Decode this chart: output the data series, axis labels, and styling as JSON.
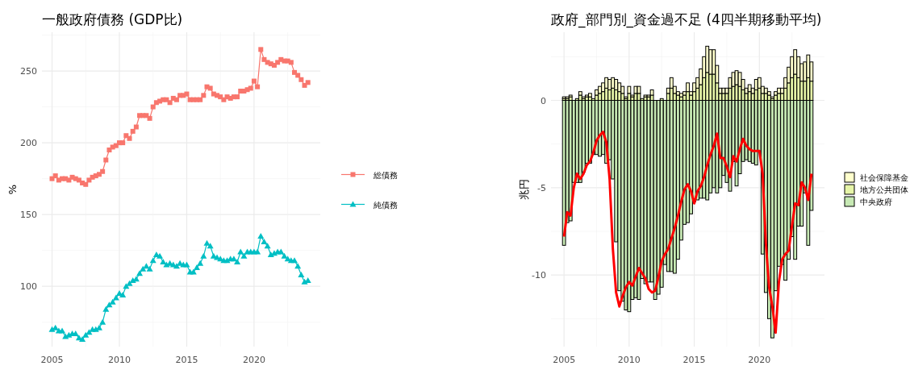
{
  "chart_data": [
    {
      "type": "line",
      "title": "一般政府債務 (GDP比)",
      "ylabel": "%",
      "x": [
        "2005-01",
        "2005-04",
        "2005-07",
        "2005-10",
        "2006-01",
        "2006-04",
        "2006-07",
        "2006-10",
        "2007-01",
        "2007-04",
        "2007-07",
        "2007-10",
        "2008-01",
        "2008-04",
        "2008-07",
        "2008-10",
        "2009-01",
        "2009-04",
        "2009-07",
        "2009-10",
        "2010-01",
        "2010-04",
        "2010-07",
        "2010-10",
        "2011-01",
        "2011-04",
        "2011-07",
        "2011-10",
        "2012-01",
        "2012-04",
        "2012-07",
        "2012-10",
        "2013-01",
        "2013-04",
        "2013-07",
        "2013-10",
        "2014-01",
        "2014-04",
        "2014-07",
        "2014-10",
        "2015-01",
        "2015-04",
        "2015-07",
        "2015-10",
        "2016-01",
        "2016-04",
        "2016-07",
        "2016-10",
        "2017-01",
        "2017-04",
        "2017-07",
        "2017-10",
        "2018-01",
        "2018-04",
        "2018-07",
        "2018-10",
        "2019-01",
        "2019-04",
        "2019-07",
        "2019-10",
        "2020-01",
        "2020-04",
        "2020-07",
        "2020-10",
        "2021-01",
        "2021-04",
        "2021-07",
        "2021-10",
        "2022-01",
        "2022-04",
        "2022-07",
        "2022-10",
        "2023-01",
        "2023-04",
        "2023-07",
        "2023-10",
        "2024-01"
      ],
      "series": [
        {
          "name": "総債務",
          "color": "#f8766d",
          "marker": "square",
          "values": [
            175,
            177,
            174,
            175,
            175,
            174,
            176,
            175,
            174,
            172,
            171,
            174,
            176,
            177,
            178,
            180,
            188,
            195,
            197,
            198,
            200,
            200,
            205,
            203,
            208,
            211,
            219,
            219,
            219,
            217,
            225,
            228,
            229,
            230,
            230,
            228,
            231,
            230,
            233,
            233,
            234,
            230,
            230,
            230,
            230,
            233,
            239,
            238,
            234,
            233,
            232,
            230,
            232,
            231,
            232,
            232,
            236,
            236,
            237,
            238,
            243,
            239,
            265,
            258,
            256,
            255,
            254,
            256,
            258,
            257,
            257,
            256,
            249,
            247,
            244,
            240,
            242
          ]
        },
        {
          "name": "純債務",
          "color": "#00bfc4",
          "marker": "triangle",
          "values": [
            70,
            71,
            69,
            69,
            65,
            66,
            67,
            67,
            64,
            63,
            66,
            68,
            70,
            70,
            71,
            75,
            84,
            87,
            89,
            92,
            95,
            94,
            100,
            102,
            104,
            105,
            109,
            112,
            114,
            112,
            118,
            122,
            121,
            117,
            115,
            116,
            115,
            114,
            116,
            115,
            115,
            110,
            110,
            113,
            116,
            121,
            130,
            128,
            121,
            120,
            119,
            118,
            118,
            119,
            119,
            117,
            124,
            121,
            124,
            124,
            124,
            124,
            135,
            131,
            128,
            122,
            123,
            124,
            124,
            121,
            119,
            118,
            118,
            114,
            108,
            103,
            104
          ]
        }
      ],
      "xlim": [
        "2004-04",
        "2024-12"
      ],
      "xticks": [
        "2005",
        "2010",
        "2015",
        "2020"
      ],
      "ylim": [
        58,
        277
      ],
      "yticks": [
        100,
        150,
        200,
        250
      ],
      "grid": true,
      "legend": "right"
    },
    {
      "type": "bar",
      "title": "政府_部門別_資金過不足 (4四半期移動平均)",
      "ylabel": "兆円",
      "stacked": true,
      "x": [
        "2005-01",
        "2005-04",
        "2005-07",
        "2005-10",
        "2006-01",
        "2006-04",
        "2006-07",
        "2006-10",
        "2007-01",
        "2007-04",
        "2007-07",
        "2007-10",
        "2008-01",
        "2008-04",
        "2008-07",
        "2008-10",
        "2009-01",
        "2009-04",
        "2009-07",
        "2009-10",
        "2010-01",
        "2010-04",
        "2010-07",
        "2010-10",
        "2011-01",
        "2011-04",
        "2011-07",
        "2011-10",
        "2012-01",
        "2012-04",
        "2012-07",
        "2012-10",
        "2013-01",
        "2013-04",
        "2013-07",
        "2013-10",
        "2014-01",
        "2014-04",
        "2014-07",
        "2014-10",
        "2015-01",
        "2015-04",
        "2015-07",
        "2015-10",
        "2016-01",
        "2016-04",
        "2016-07",
        "2016-10",
        "2017-01",
        "2017-04",
        "2017-07",
        "2017-10",
        "2018-01",
        "2018-04",
        "2018-07",
        "2018-10",
        "2019-01",
        "2019-04",
        "2019-07",
        "2019-10",
        "2020-01",
        "2020-04",
        "2020-07",
        "2020-10",
        "2021-01",
        "2021-04",
        "2021-07",
        "2021-10",
        "2022-01",
        "2022-04",
        "2022-07",
        "2022-10",
        "2023-01",
        "2023-04",
        "2023-07",
        "2023-10",
        "2024-01"
      ],
      "series": [
        {
          "name": "中央政府",
          "color": "#c7e9b4",
          "values": [
            -8.3,
            -7.0,
            -6.9,
            -4.7,
            -4.7,
            -4.7,
            -4.1,
            -3.6,
            -3.6,
            -3.1,
            -3.1,
            -3.2,
            -3.1,
            -3.6,
            -3.4,
            -4.5,
            -8.1,
            -10.9,
            -11.5,
            -12.0,
            -12.1,
            -11.4,
            -11.3,
            -11.4,
            -10.2,
            -10.5,
            -10.4,
            -10.4,
            -11.4,
            -11.1,
            -10.7,
            -9.4,
            -9.8,
            -9.8,
            -9.9,
            -9.1,
            -8.0,
            -7.1,
            -7.0,
            -6.5,
            -5.8,
            -5.7,
            -5.6,
            -5.6,
            -5.7,
            -5.3,
            -5.0,
            -5.3,
            -5.0,
            -4.3,
            -4.7,
            -5.2,
            -3.5,
            -4.9,
            -4.2,
            -3.5,
            -3.4,
            -3.5,
            -3.6,
            -3.7,
            -2.9,
            -8.8,
            -11.0,
            -12.5,
            -13.6,
            -10.9,
            -9.5,
            -9.4,
            -10.3,
            -9.1,
            -7.8,
            -9.1,
            -7.2,
            -7.2,
            -5.3,
            -8.3,
            -6.3
          ]
        },
        {
          "name": "地方公共団体",
          "color": "#e6f5a8",
          "values": [
            0.1,
            0.1,
            0.2,
            0.0,
            0.1,
            0.3,
            0.1,
            0.2,
            0.2,
            0.1,
            0.3,
            0.4,
            0.5,
            0.7,
            0.6,
            0.7,
            0.6,
            0.5,
            0.4,
            0.1,
            0.4,
            0.2,
            0.4,
            0.4,
            0.1,
            0.2,
            0.2,
            0.3,
            0.0,
            0.0,
            0.1,
            0.0,
            0.4,
            0.7,
            0.4,
            0.3,
            0.2,
            0.3,
            0.5,
            0.3,
            0.5,
            0.7,
            0.9,
            1.3,
            1.6,
            1.5,
            1.5,
            1.0,
            0.4,
            0.4,
            0.4,
            0.7,
            0.8,
            0.9,
            0.8,
            0.6,
            0.4,
            0.5,
            0.4,
            0.6,
            0.7,
            0.4,
            0.4,
            0.3,
            0.1,
            0.3,
            0.4,
            0.4,
            0.7,
            1.0,
            1.3,
            1.5,
            1.3,
            1.1,
            1.1,
            1.3,
            1.1
          ]
        },
        {
          "name": "社会保障基金",
          "color": "#ffffcc",
          "values": [
            0.1,
            0.1,
            0.1,
            0.0,
            0.0,
            0.2,
            0.1,
            0.1,
            0.2,
            0.0,
            0.3,
            0.4,
            0.5,
            0.6,
            0.6,
            0.6,
            0.6,
            0.5,
            0.4,
            0.1,
            0.4,
            0.1,
            0.4,
            0.4,
            0.0,
            0.1,
            0.1,
            0.3,
            0.0,
            0.0,
            0.0,
            0.0,
            0.3,
            0.6,
            0.4,
            0.2,
            0.2,
            0.2,
            0.5,
            0.2,
            0.5,
            0.6,
            0.9,
            1.2,
            1.5,
            1.4,
            1.4,
            1.0,
            0.3,
            0.3,
            0.3,
            0.6,
            0.8,
            0.8,
            0.8,
            0.6,
            0.3,
            0.4,
            0.3,
            0.6,
            0.6,
            0.4,
            0.3,
            0.2,
            0.1,
            0.2,
            0.3,
            0.3,
            0.6,
            0.9,
            1.2,
            1.4,
            1.2,
            1.0,
            1.1,
            1.3,
            1.1
          ]
        },
        {
          "type": "line",
          "color": "#ff0000",
          "values": [
            -7.8,
            -6.4,
            -6.6,
            -5.0,
            -4.2,
            -4.5,
            -4.2,
            -3.7,
            -3.5,
            -3.0,
            -2.3,
            -2.0,
            -1.8,
            -2.4,
            -4.5,
            -8.5,
            -11.0,
            -11.8,
            -11.2,
            -10.7,
            -10.4,
            -10.6,
            -10.1,
            -9.6,
            -9.9,
            -10.2,
            -10.8,
            -11.0,
            -10.9,
            -10.1,
            -9.2,
            -8.8,
            -8.5,
            -7.9,
            -7.3,
            -6.6,
            -5.8,
            -5.1,
            -4.8,
            -5.2,
            -5.9,
            -5.2,
            -4.9,
            -4.4,
            -3.7,
            -3.1,
            -2.6,
            -1.9,
            -3.3,
            -3.3,
            -3.8,
            -4.4,
            -3.2,
            -3.5,
            -2.8,
            -2.2,
            -2.6,
            -2.8,
            -2.9,
            -2.9,
            -2.9,
            -4.2,
            -8.2,
            -10.7,
            -11.8,
            -13.3,
            -10.4,
            -9.1,
            -8.8,
            -8.6,
            -7.2,
            -5.9,
            -6.0,
            -4.7,
            -5.0,
            -5.7,
            -4.2
          ]
        }
      ],
      "xlim": [
        "2004-01",
        "2025-01"
      ],
      "xticks": [
        "2005",
        "2010",
        "2015",
        "2020"
      ],
      "ylim": [
        -14.1,
        3.9
      ],
      "yticks": [
        -10,
        -5,
        0
      ],
      "grid": true,
      "legend": "right"
    }
  ]
}
